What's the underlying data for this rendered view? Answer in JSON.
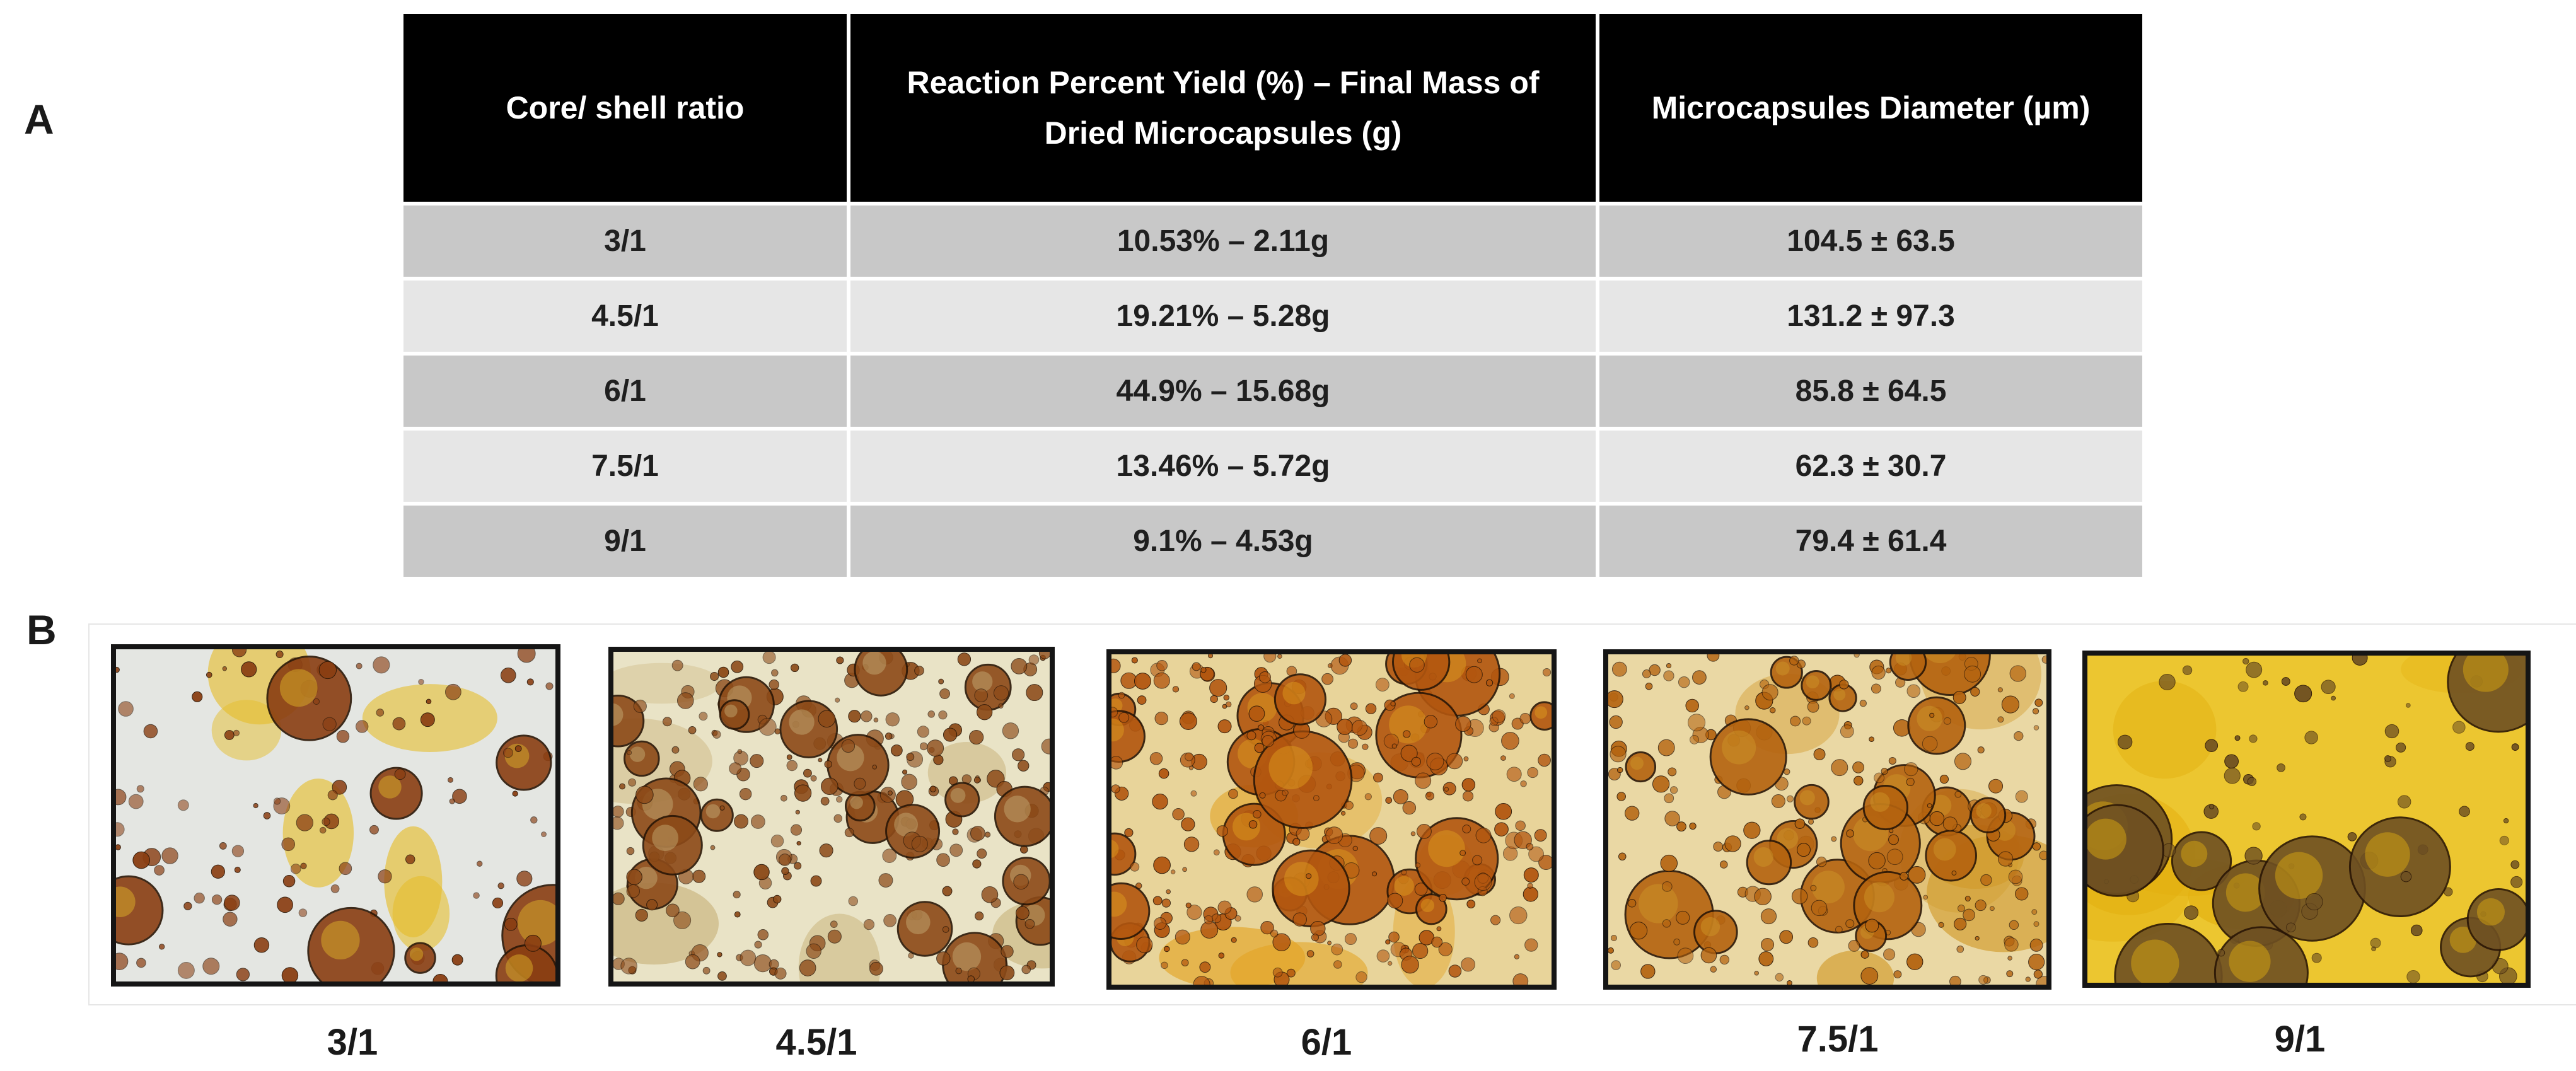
{
  "panels": {
    "a": "A",
    "b": "B"
  },
  "table": {
    "headers": [
      "Core/ shell ratio",
      "Reaction Percent Yield (%) –  Final Mass of Dried Microcapsules (g)",
      "Microcapsules Diameter (µm)"
    ],
    "rows": [
      {
        "ratio": "3/1",
        "yield": "10.53% – 2.11g",
        "diameter": "104.5 ± 63.5"
      },
      {
        "ratio": "4.5/1",
        "yield": "19.21% – 5.28g",
        "diameter": "131.2 ± 97.3"
      },
      {
        "ratio": "6/1",
        "yield": "44.9% – 15.68g",
        "diameter": "85.8 ± 64.5"
      },
      {
        "ratio": "7.5/1",
        "yield": "13.46% – 5.72g",
        "diameter": "62.3 ± 30.7"
      },
      {
        "ratio": "9/1",
        "yield": "9.1% – 4.53g",
        "diameter": "79.4 ± 61.4"
      }
    ]
  },
  "micrographs": [
    {
      "caption": "3/1",
      "background": "#e4e6e2",
      "particle": "#8a3e12",
      "accent": "#e5bd2a"
    },
    {
      "caption": "4.5/1",
      "background": "#e9e3c6",
      "particle": "#8c4a18",
      "accent": "#c8b27a"
    },
    {
      "caption": "6/1",
      "background": "#e8d49a",
      "particle": "#b2560f",
      "accent": "#e3a220"
    },
    {
      "caption": "7.5/1",
      "background": "#ead8a4",
      "particle": "#b4630f",
      "accent": "#d19a2a"
    },
    {
      "caption": "9/1",
      "background": "#ecc630",
      "particle": "#6e5022",
      "accent": "#e3b010"
    }
  ]
}
